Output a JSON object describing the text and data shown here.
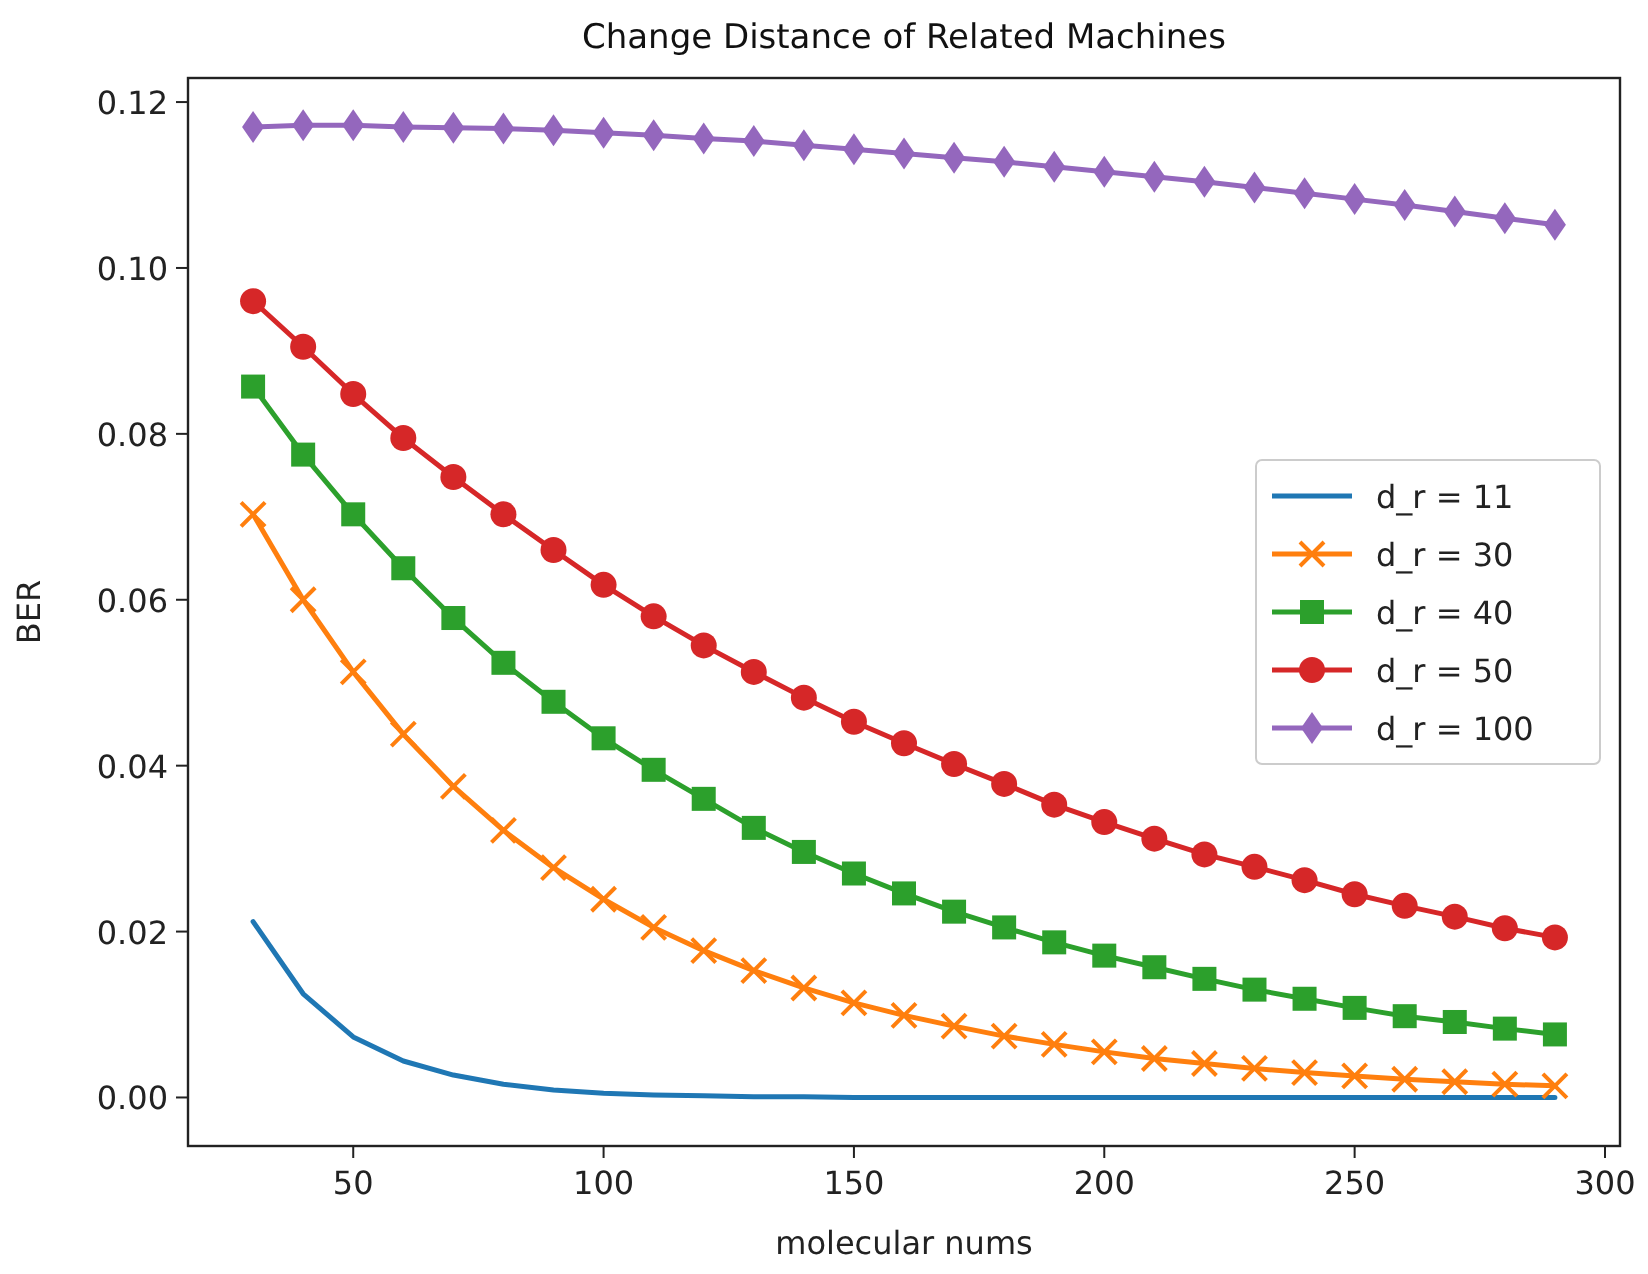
{
  "chart_data": {
    "type": "line",
    "title": "Change Distance of Related Machines",
    "xlabel": "molecular nums",
    "ylabel": "BER",
    "x": [
      30,
      40,
      50,
      60,
      70,
      80,
      90,
      100,
      110,
      120,
      130,
      140,
      150,
      160,
      170,
      180,
      190,
      200,
      210,
      220,
      230,
      240,
      250,
      260,
      270,
      280,
      290
    ],
    "series": [
      {
        "name": "d_r = 11",
        "color": "#1f77b4",
        "marker": "none",
        "values": [
          0.0212,
          0.0125,
          0.0073,
          0.0044,
          0.0027,
          0.0016,
          0.0009,
          0.0005,
          0.0003,
          0.0002,
          0.0001,
          0.0001,
          0,
          0,
          0,
          0,
          0,
          0,
          0,
          0,
          0,
          0,
          0,
          0,
          0,
          0,
          0
        ]
      },
      {
        "name": "d_r = 30",
        "color": "#ff7f0e",
        "marker": "cross",
        "values": [
          0.0703,
          0.06,
          0.0513,
          0.0438,
          0.0375,
          0.0322,
          0.0277,
          0.0239,
          0.0205,
          0.0177,
          0.0153,
          0.0132,
          0.0114,
          0.0099,
          0.0086,
          0.0074,
          0.0064,
          0.0055,
          0.0047,
          0.0041,
          0.0035,
          0.003,
          0.0026,
          0.0022,
          0.0019,
          0.0016,
          0.0014
        ]
      },
      {
        "name": "d_r = 40",
        "color": "#2ca02c",
        "marker": "square",
        "values": [
          0.0857,
          0.0775,
          0.0703,
          0.0638,
          0.0578,
          0.0524,
          0.0477,
          0.0433,
          0.0395,
          0.036,
          0.0325,
          0.0296,
          0.027,
          0.0246,
          0.0224,
          0.0205,
          0.0187,
          0.0171,
          0.0157,
          0.0143,
          0.013,
          0.0119,
          0.0108,
          0.0098,
          0.0091,
          0.0083,
          0.0076
        ]
      },
      {
        "name": "d_r = 50",
        "color": "#d62728",
        "marker": "circle",
        "values": [
          0.096,
          0.0905,
          0.0848,
          0.0795,
          0.0748,
          0.0703,
          0.066,
          0.0618,
          0.058,
          0.0545,
          0.0513,
          0.0482,
          0.0453,
          0.0427,
          0.0402,
          0.0378,
          0.0353,
          0.0332,
          0.0312,
          0.0293,
          0.0278,
          0.0262,
          0.0245,
          0.0231,
          0.0218,
          0.0204,
          0.0193
        ]
      },
      {
        "name": "d_r = 100",
        "color": "#9467bd",
        "marker": "diamond",
        "values": [
          0.117,
          0.1172,
          0.1172,
          0.117,
          0.1169,
          0.1168,
          0.1166,
          0.1163,
          0.116,
          0.1156,
          0.1153,
          0.1148,
          0.1143,
          0.1138,
          0.1133,
          0.1128,
          0.1122,
          0.1116,
          0.111,
          0.1104,
          0.1097,
          0.109,
          0.1083,
          0.1076,
          0.1068,
          0.106,
          0.1052
        ]
      }
    ],
    "xlim": [
      17,
      303
    ],
    "ylim": [
      -0.00585,
      0.1229
    ],
    "xticks": [
      50,
      100,
      150,
      200,
      250,
      300
    ],
    "yticks": [
      {
        "value": 0,
        "label": "0.00"
      },
      {
        "value": 0.02,
        "label": "0.02"
      },
      {
        "value": 0.04,
        "label": "0.04"
      },
      {
        "value": 0.06,
        "label": "0.06"
      },
      {
        "value": 0.08,
        "label": "0.08"
      },
      {
        "value": 0.1,
        "label": "0.10"
      },
      {
        "value": 0.12,
        "label": "0.12"
      }
    ],
    "grid": false,
    "legend": "center right",
    "line_style": "solid"
  }
}
